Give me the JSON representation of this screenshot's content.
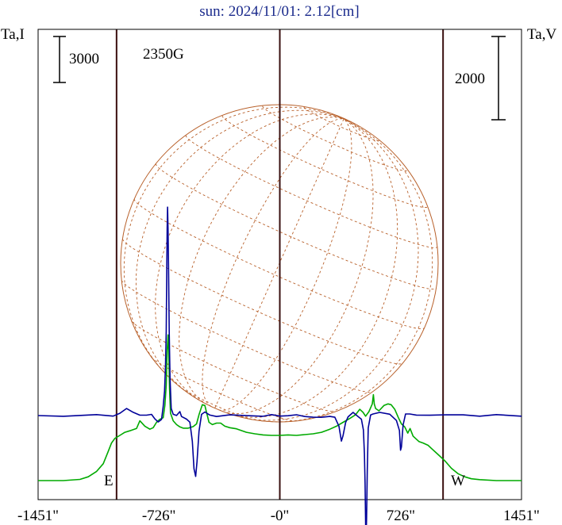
{
  "chart_data": {
    "type": "line",
    "title": "sun: 2024/11/01: 2.12[cm]",
    "left_axis_label": "Ta,I",
    "right_axis_label": "Ta,V",
    "x_ticks": [
      {
        "value": -1451,
        "label": "-1451\""
      },
      {
        "value": -726,
        "label": "-726\""
      },
      {
        "value": 0,
        "label": "-0\""
      },
      {
        "value": 726,
        "label": "726\""
      },
      {
        "value": 1451,
        "label": "1451\""
      }
    ],
    "xlim": [
      -1451,
      1451
    ],
    "limb_lines": [
      -980,
      980
    ],
    "center_line": 0,
    "scale_bar_I": {
      "label": "3000",
      "value": 3000
    },
    "scale_bar_V": {
      "label": "2000",
      "value": 2000
    },
    "peak_annotation": {
      "label": "2350G",
      "x": -680
    },
    "limb_labels": {
      "east": "E",
      "west": "W"
    },
    "colors": {
      "stokes_I": "#00aa00",
      "stokes_V": "#000099",
      "frame": "#000000",
      "limb_line": "#3a0f0f",
      "disk": "#b8602a",
      "title": "#1a2a8c"
    },
    "series": [
      {
        "name": "I",
        "color": "#00aa00",
        "points": [
          [
            -1451,
            0
          ],
          [
            -1300,
            0
          ],
          [
            -1200,
            80
          ],
          [
            -1150,
            250
          ],
          [
            -1100,
            600
          ],
          [
            -1060,
            1100
          ],
          [
            -1030,
            1900
          ],
          [
            -1010,
            2450
          ],
          [
            -990,
            2750
          ],
          [
            -960,
            2950
          ],
          [
            -930,
            3150
          ],
          [
            -900,
            3250
          ],
          [
            -860,
            3400
          ],
          [
            -840,
            3900
          ],
          [
            -810,
            3550
          ],
          [
            -780,
            3350
          ],
          [
            -760,
            3450
          ],
          [
            -740,
            3800
          ],
          [
            -720,
            4000
          ],
          [
            -700,
            4100
          ],
          [
            -690,
            4900
          ],
          [
            -682,
            6200
          ],
          [
            -676,
            8500
          ],
          [
            -671,
            9500
          ],
          [
            -667,
            8500
          ],
          [
            -662,
            6000
          ],
          [
            -656,
            4400
          ],
          [
            -640,
            3900
          ],
          [
            -620,
            3650
          ],
          [
            -600,
            3500
          ],
          [
            -580,
            3420
          ],
          [
            -550,
            3420
          ],
          [
            -520,
            3520
          ],
          [
            -500,
            3700
          ],
          [
            -485,
            4300
          ],
          [
            -465,
            4950
          ],
          [
            -450,
            4900
          ],
          [
            -440,
            4450
          ],
          [
            -425,
            3800
          ],
          [
            -405,
            3650
          ],
          [
            -380,
            3750
          ],
          [
            -355,
            3750
          ],
          [
            -330,
            3550
          ],
          [
            -300,
            3450
          ],
          [
            -260,
            3380
          ],
          [
            -200,
            3150
          ],
          [
            -150,
            3050
          ],
          [
            -100,
            2980
          ],
          [
            -50,
            2950
          ],
          [
            0,
            2950
          ],
          [
            50,
            2980
          ],
          [
            100,
            2950
          ],
          [
            150,
            3000
          ],
          [
            200,
            3050
          ],
          [
            250,
            3150
          ],
          [
            300,
            3350
          ],
          [
            340,
            3550
          ],
          [
            380,
            3800
          ],
          [
            420,
            4050
          ],
          [
            455,
            4300
          ],
          [
            480,
            4650
          ],
          [
            500,
            4450
          ],
          [
            515,
            4200
          ],
          [
            535,
            4500
          ],
          [
            555,
            5000
          ],
          [
            562,
            5600
          ],
          [
            567,
            5000
          ],
          [
            575,
            4700
          ],
          [
            595,
            4550
          ],
          [
            625,
            4900
          ],
          [
            650,
            5000
          ],
          [
            668,
            4950
          ],
          [
            690,
            4650
          ],
          [
            712,
            4100
          ],
          [
            730,
            3700
          ],
          [
            750,
            3500
          ],
          [
            768,
            3100
          ],
          [
            782,
            3400
          ],
          [
            800,
            2900
          ],
          [
            815,
            2750
          ],
          [
            835,
            2550
          ],
          [
            860,
            2450
          ],
          [
            890,
            2300
          ],
          [
            910,
            2100
          ],
          [
            950,
            1700
          ],
          [
            990,
            1300
          ],
          [
            1030,
            800
          ],
          [
            1070,
            450
          ],
          [
            1110,
            250
          ],
          [
            1150,
            120
          ],
          [
            1200,
            60
          ],
          [
            1300,
            0
          ],
          [
            1451,
            0
          ]
        ]
      },
      {
        "name": "V",
        "color": "#000099",
        "points": [
          [
            -1451,
            0
          ],
          [
            -1300,
            0
          ],
          [
            -1100,
            0
          ],
          [
            -1000,
            0
          ],
          [
            -960,
            60
          ],
          [
            -920,
            150
          ],
          [
            -880,
            100
          ],
          [
            -840,
            0
          ],
          [
            -800,
            0
          ],
          [
            -770,
            50
          ],
          [
            -750,
            -100
          ],
          [
            -730,
            -150
          ],
          [
            -710,
            -80
          ],
          [
            -700,
            200
          ],
          [
            -692,
            600
          ],
          [
            -686,
            1200
          ],
          [
            -682,
            2000
          ],
          [
            -679,
            3300
          ],
          [
            -676,
            4500
          ],
          [
            -674,
            5000
          ],
          [
            -671,
            4500
          ],
          [
            -668,
            3600
          ],
          [
            -664,
            2000
          ],
          [
            -659,
            900
          ],
          [
            -652,
            150
          ],
          [
            -640,
            50
          ],
          [
            -620,
            0
          ],
          [
            -600,
            80
          ],
          [
            -590,
            0
          ],
          [
            -560,
            -100
          ],
          [
            -540,
            -160
          ],
          [
            -525,
            -600
          ],
          [
            -515,
            -1300
          ],
          [
            -505,
            -1450
          ],
          [
            -497,
            -1100
          ],
          [
            -485,
            -400
          ],
          [
            -470,
            50
          ],
          [
            -450,
            80
          ],
          [
            -420,
            0
          ],
          [
            -380,
            0
          ],
          [
            -300,
            0
          ],
          [
            -200,
            0
          ],
          [
            -100,
            0
          ],
          [
            -50,
            0
          ],
          [
            0,
            0
          ],
          [
            50,
            0
          ],
          [
            100,
            0
          ],
          [
            150,
            0
          ],
          [
            200,
            -50
          ],
          [
            250,
            -50
          ],
          [
            300,
            0
          ],
          [
            330,
            -60
          ],
          [
            355,
            -250
          ],
          [
            370,
            -600
          ],
          [
            380,
            -500
          ],
          [
            395,
            -150
          ],
          [
            410,
            -30
          ],
          [
            440,
            60
          ],
          [
            470,
            0
          ],
          [
            490,
            -100
          ],
          [
            502,
            -350
          ],
          [
            508,
            -900
          ],
          [
            512,
            -1650
          ],
          [
            515,
            -2600
          ],
          [
            518,
            -2900
          ],
          [
            521,
            -2500
          ],
          [
            525,
            -1300
          ],
          [
            531,
            -300
          ],
          [
            545,
            0
          ],
          [
            560,
            60
          ],
          [
            600,
            60
          ],
          [
            660,
            30
          ],
          [
            700,
            -100
          ],
          [
            718,
            -380
          ],
          [
            725,
            -820
          ],
          [
            730,
            -750
          ],
          [
            740,
            -250
          ],
          [
            755,
            60
          ],
          [
            780,
            30
          ],
          [
            820,
            0
          ],
          [
            900,
            30
          ],
          [
            1000,
            0
          ],
          [
            1100,
            20
          ],
          [
            1200,
            0
          ],
          [
            1300,
            0
          ],
          [
            1451,
            0
          ]
        ]
      }
    ],
    "y_scale_note": "relative antenna temperature; baselines I at bottom, V at mid"
  }
}
